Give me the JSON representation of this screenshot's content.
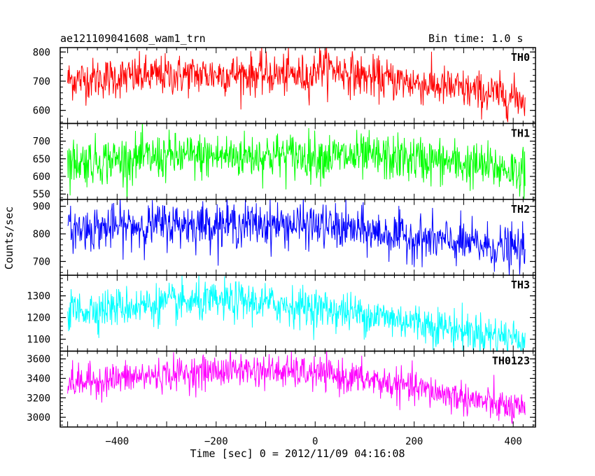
{
  "header": {
    "title": "ae121109041608_wam1_trn",
    "bin_time": "Bin time: 1.0 s"
  },
  "chart_data": {
    "type": "line",
    "xlabel": "Time [sec] 0 = 2012/11/09 04:16:08",
    "ylabel": "Counts/sec",
    "xlim": [
      -515,
      445
    ],
    "x_ticks": [
      -400,
      -200,
      0,
      200,
      400
    ],
    "x_range_data": [
      -500,
      424
    ],
    "panels": [
      {
        "name": "TH0",
        "color": "#ff0000",
        "ylim": [
          555,
          815
        ],
        "y_ticks": [
          600,
          700,
          800
        ],
        "trend": [
          [
            -500,
            705
          ],
          [
            -300,
            720
          ],
          [
            -150,
            725
          ],
          [
            -5,
            718
          ],
          [
            5,
            755
          ],
          [
            100,
            715
          ],
          [
            200,
            695
          ],
          [
            300,
            670
          ],
          [
            424,
            640
          ]
        ],
        "noise": 35
      },
      {
        "name": "TH1",
        "color": "#00ff00",
        "ylim": [
          535,
          750
        ],
        "y_ticks": [
          550,
          600,
          650,
          700
        ],
        "trend": [
          [
            -500,
            640
          ],
          [
            -300,
            655
          ],
          [
            -100,
            660
          ],
          [
            0,
            658
          ],
          [
            200,
            650
          ],
          [
            300,
            635
          ],
          [
            424,
            615
          ]
        ],
        "noise": 33
      },
      {
        "name": "TH2",
        "color": "#0000ff",
        "ylim": [
          650,
          925
        ],
        "y_ticks": [
          700,
          800,
          900
        ],
        "trend": [
          [
            -500,
            815
          ],
          [
            -300,
            835
          ],
          [
            -100,
            835
          ],
          [
            0,
            830
          ],
          [
            100,
            810
          ],
          [
            200,
            785
          ],
          [
            300,
            765
          ],
          [
            424,
            740
          ]
        ],
        "noise": 40
      },
      {
        "name": "TH3",
        "color": "#00ffff",
        "ylim": [
          1045,
          1395
        ],
        "y_ticks": [
          1100,
          1200,
          1300
        ],
        "trend": [
          [
            -500,
            1230
          ],
          [
            -300,
            1265
          ],
          [
            -150,
            1275
          ],
          [
            0,
            1245
          ],
          [
            100,
            1215
          ],
          [
            200,
            1180
          ],
          [
            300,
            1140
          ],
          [
            424,
            1100
          ]
        ],
        "noise": 45
      },
      {
        "name": "TH0123",
        "color": "#ff00ff",
        "ylim": [
          2900,
          3680
        ],
        "y_ticks": [
          3000,
          3200,
          3400,
          3600
        ],
        "trend": [
          [
            -500,
            3350
          ],
          [
            -300,
            3440
          ],
          [
            -150,
            3490
          ],
          [
            0,
            3450
          ],
          [
            100,
            3390
          ],
          [
            200,
            3300
          ],
          [
            300,
            3200
          ],
          [
            424,
            3060
          ]
        ],
        "noise": 85
      }
    ]
  }
}
